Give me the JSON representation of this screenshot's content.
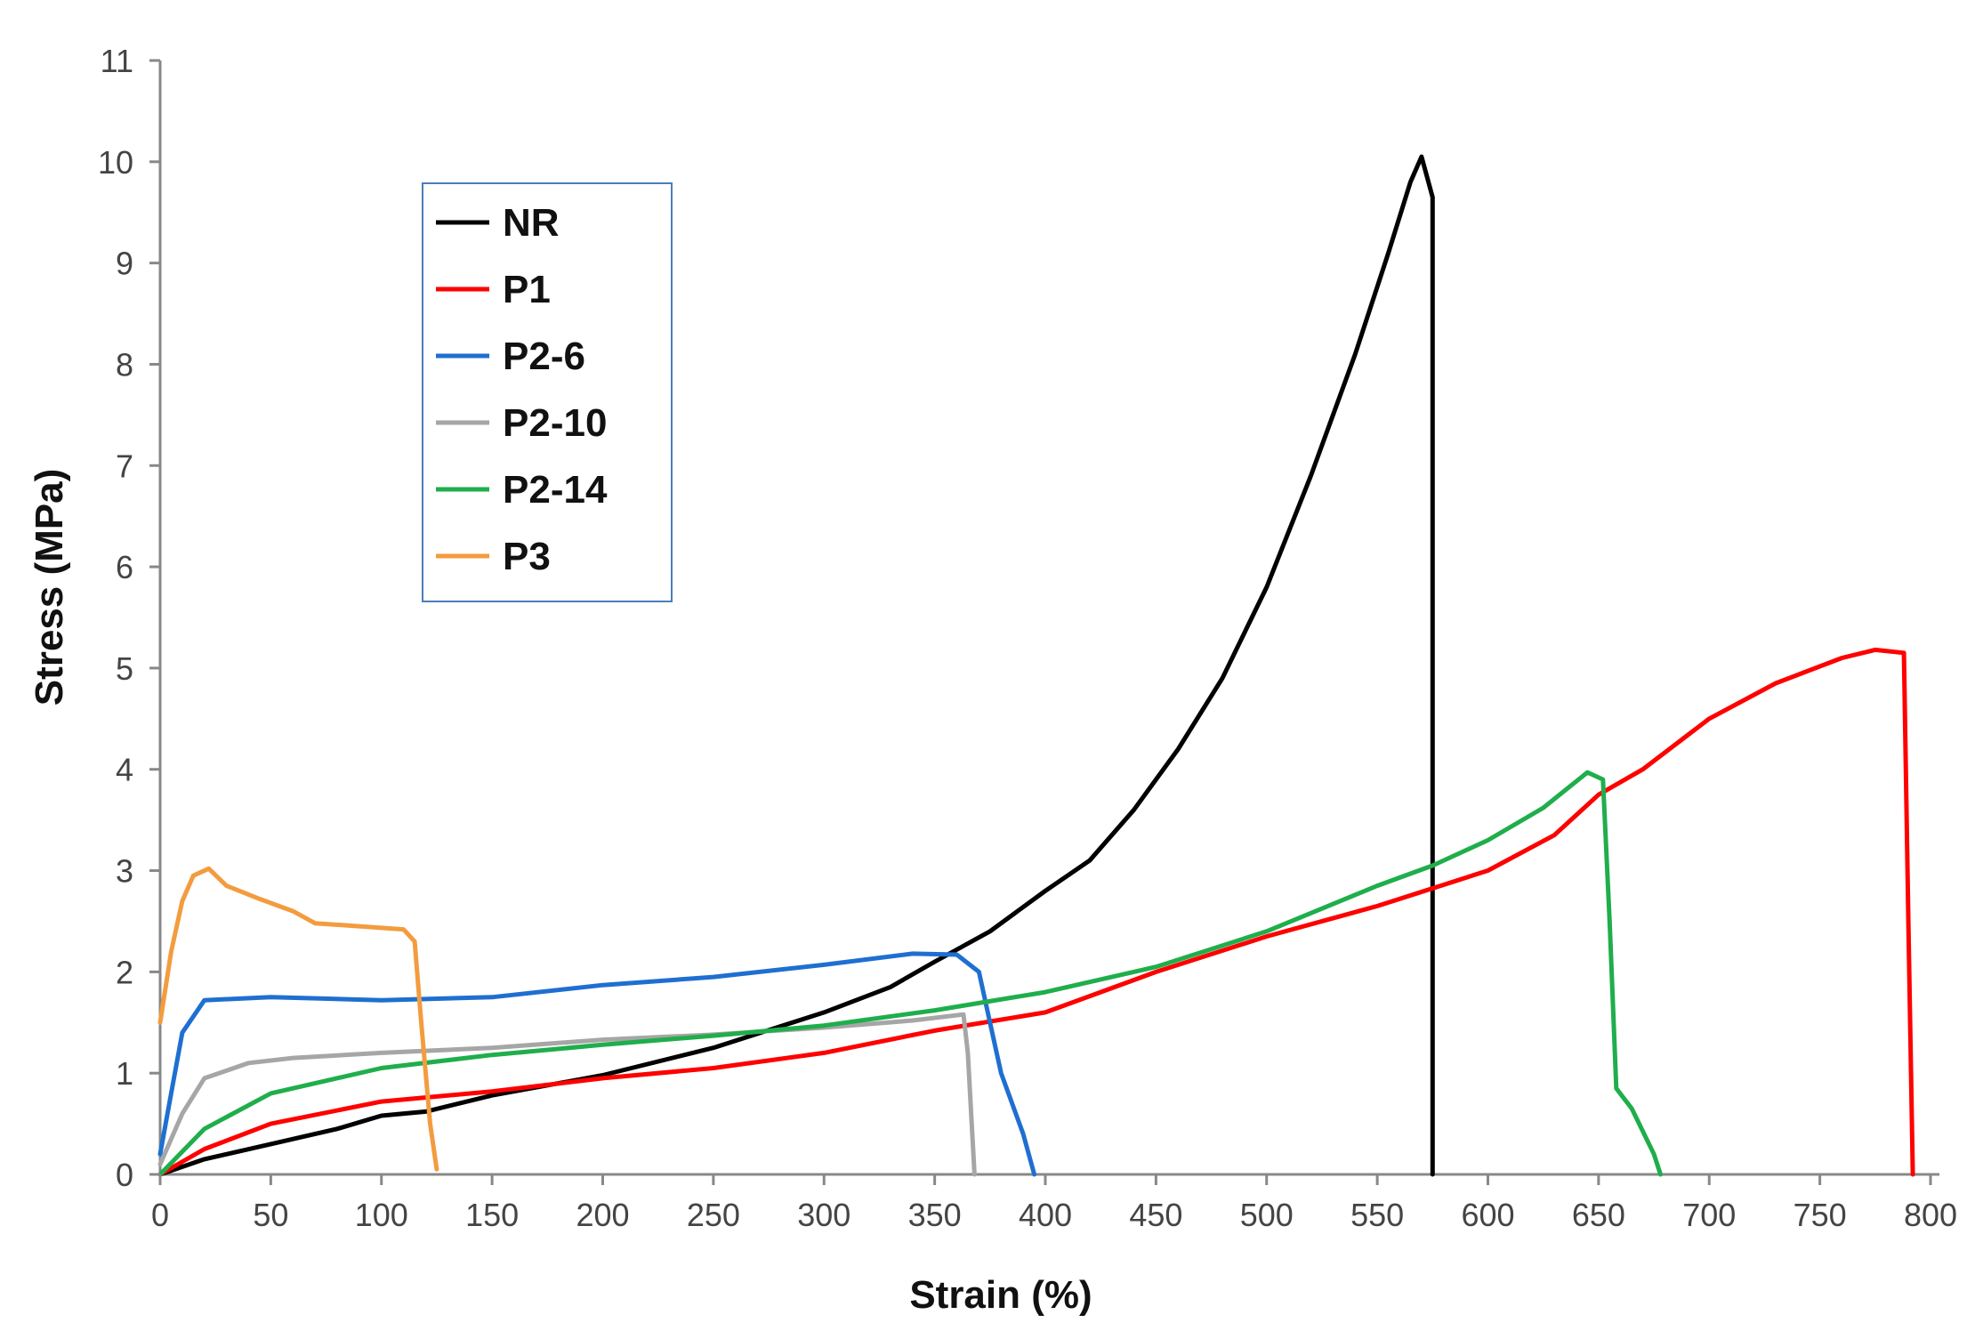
{
  "chart_data": {
    "type": "line",
    "title": "",
    "xlabel": "Strain (%)",
    "ylabel": "Stress (MPa)",
    "xlim": [
      0,
      800
    ],
    "ylim": [
      0,
      11
    ],
    "xticks": [
      "0",
      "50",
      "100",
      "150",
      "200",
      "250",
      "300",
      "350",
      "400",
      "450",
      "500",
      "550",
      "600",
      "650",
      "700",
      "750",
      "800"
    ],
    "yticks": [
      "0",
      "1",
      "2",
      "3",
      "4",
      "5",
      "6",
      "7",
      "8",
      "9",
      "10",
      "11"
    ],
    "grid": false,
    "legend_position": "top-left",
    "series": [
      {
        "name": "NR",
        "color": "#000000",
        "points": [
          [
            0,
            0
          ],
          [
            20,
            0.15
          ],
          [
            50,
            0.3
          ],
          [
            80,
            0.45
          ],
          [
            100,
            0.58
          ],
          [
            120,
            0.62
          ],
          [
            150,
            0.78
          ],
          [
            200,
            0.98
          ],
          [
            250,
            1.25
          ],
          [
            300,
            1.6
          ],
          [
            330,
            1.85
          ],
          [
            350,
            2.1
          ],
          [
            375,
            2.4
          ],
          [
            400,
            2.8
          ],
          [
            420,
            3.1
          ],
          [
            440,
            3.6
          ],
          [
            460,
            4.2
          ],
          [
            480,
            4.9
          ],
          [
            500,
            5.8
          ],
          [
            520,
            6.9
          ],
          [
            540,
            8.1
          ],
          [
            555,
            9.1
          ],
          [
            565,
            9.8
          ],
          [
            570,
            10.05
          ],
          [
            575,
            9.65
          ],
          [
            575,
            0
          ]
        ]
      },
      {
        "name": "P1",
        "color": "#ff0000",
        "points": [
          [
            0,
            0
          ],
          [
            20,
            0.25
          ],
          [
            50,
            0.5
          ],
          [
            100,
            0.72
          ],
          [
            150,
            0.82
          ],
          [
            200,
            0.95
          ],
          [
            250,
            1.05
          ],
          [
            300,
            1.2
          ],
          [
            350,
            1.42
          ],
          [
            400,
            1.6
          ],
          [
            450,
            2.0
          ],
          [
            500,
            2.35
          ],
          [
            550,
            2.65
          ],
          [
            600,
            3.0
          ],
          [
            630,
            3.35
          ],
          [
            650,
            3.75
          ],
          [
            670,
            4.0
          ],
          [
            700,
            4.5
          ],
          [
            730,
            4.85
          ],
          [
            760,
            5.1
          ],
          [
            775,
            5.18
          ],
          [
            788,
            5.15
          ],
          [
            790,
            2.5
          ],
          [
            792,
            0
          ]
        ]
      },
      {
        "name": "P2-6",
        "color": "#1f6fd1",
        "points": [
          [
            0,
            0.2
          ],
          [
            5,
            0.8
          ],
          [
            10,
            1.4
          ],
          [
            20,
            1.72
          ],
          [
            50,
            1.75
          ],
          [
            100,
            1.72
          ],
          [
            150,
            1.75
          ],
          [
            200,
            1.87
          ],
          [
            250,
            1.95
          ],
          [
            300,
            2.07
          ],
          [
            340,
            2.18
          ],
          [
            360,
            2.17
          ],
          [
            370,
            2.0
          ],
          [
            375,
            1.5
          ],
          [
            380,
            1.0
          ],
          [
            390,
            0.4
          ],
          [
            395,
            0
          ]
        ]
      },
      {
        "name": "P2-10",
        "color": "#a6a6a6",
        "points": [
          [
            0,
            0.1
          ],
          [
            10,
            0.6
          ],
          [
            20,
            0.95
          ],
          [
            40,
            1.1
          ],
          [
            60,
            1.15
          ],
          [
            100,
            1.2
          ],
          [
            150,
            1.25
          ],
          [
            200,
            1.33
          ],
          [
            250,
            1.38
          ],
          [
            300,
            1.45
          ],
          [
            340,
            1.52
          ],
          [
            363,
            1.58
          ],
          [
            365,
            1.2
          ],
          [
            368,
            0
          ]
        ]
      },
      {
        "name": "P2-14",
        "color": "#1fae4b",
        "points": [
          [
            0,
            0
          ],
          [
            20,
            0.45
          ],
          [
            50,
            0.8
          ],
          [
            100,
            1.05
          ],
          [
            150,
            1.18
          ],
          [
            200,
            1.28
          ],
          [
            250,
            1.37
          ],
          [
            300,
            1.47
          ],
          [
            350,
            1.62
          ],
          [
            400,
            1.8
          ],
          [
            450,
            2.05
          ],
          [
            500,
            2.4
          ],
          [
            550,
            2.85
          ],
          [
            575,
            3.05
          ],
          [
            600,
            3.3
          ],
          [
            625,
            3.62
          ],
          [
            645,
            3.97
          ],
          [
            652,
            3.9
          ],
          [
            655,
            2.5
          ],
          [
            658,
            0.85
          ],
          [
            665,
            0.65
          ],
          [
            675,
            0.2
          ],
          [
            678,
            0
          ]
        ]
      },
      {
        "name": "P3",
        "color": "#f39c3f",
        "points": [
          [
            0,
            1.5
          ],
          [
            5,
            2.2
          ],
          [
            10,
            2.7
          ],
          [
            15,
            2.95
          ],
          [
            22,
            3.02
          ],
          [
            30,
            2.85
          ],
          [
            45,
            2.72
          ],
          [
            60,
            2.6
          ],
          [
            70,
            2.48
          ],
          [
            90,
            2.45
          ],
          [
            110,
            2.42
          ],
          [
            115,
            2.3
          ],
          [
            118,
            1.5
          ],
          [
            122,
            0.5
          ],
          [
            125,
            0.05
          ]
        ]
      }
    ]
  }
}
